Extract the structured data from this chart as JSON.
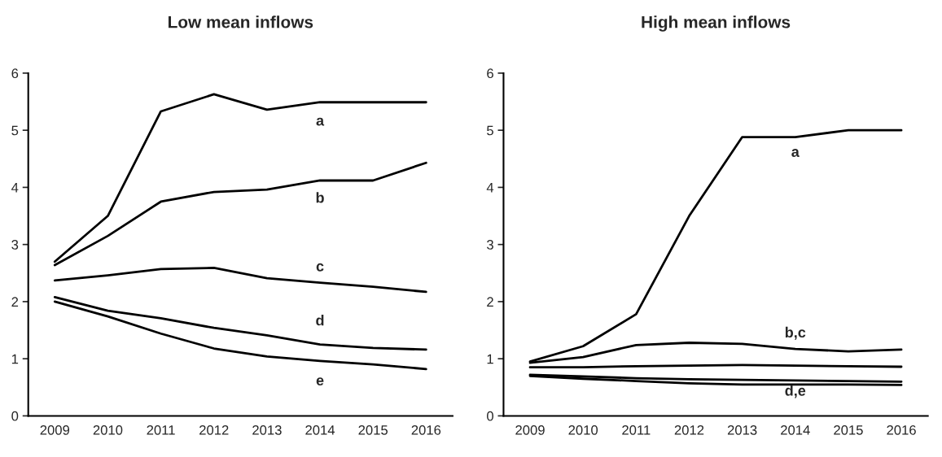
{
  "chart_data": [
    {
      "type": "line",
      "title": "Low mean inflows",
      "categories": [
        "2009",
        "2010",
        "2011",
        "2012",
        "2013",
        "2014",
        "2015",
        "2016"
      ],
      "ylim": [
        0,
        6
      ],
      "yticks": [
        0,
        1,
        2,
        3,
        4,
        5,
        6
      ],
      "grid": false,
      "legend": false,
      "marker": "none",
      "line_style": "solid",
      "series": [
        {
          "color": "#000000",
          "values": [
            2.7,
            3.5,
            5.33,
            5.63,
            5.36,
            5.49,
            5.49,
            5.49
          ]
        },
        {
          "color": "#000000",
          "values": [
            2.64,
            3.15,
            3.75,
            3.92,
            3.96,
            4.12,
            4.12,
            4.43
          ]
        },
        {
          "color": "#000000",
          "values": [
            2.37,
            2.46,
            2.57,
            2.59,
            2.41,
            2.33,
            2.26,
            2.17
          ]
        },
        {
          "color": "#000000",
          "values": [
            2.08,
            1.84,
            1.71,
            1.54,
            1.41,
            1.25,
            1.19,
            1.16
          ]
        },
        {
          "color": "#000000",
          "values": [
            2.0,
            1.74,
            1.44,
            1.18,
            1.04,
            0.96,
            0.9,
            0.82
          ]
        }
      ],
      "annotations": [
        "a",
        "b",
        "c",
        "d",
        "e"
      ]
    },
    {
      "type": "line",
      "title": "High mean inflows",
      "categories": [
        "2009",
        "2010",
        "2011",
        "2012",
        "2013",
        "2014",
        "2015",
        "2016"
      ],
      "ylim": [
        0,
        6
      ],
      "yticks": [
        0,
        1,
        2,
        3,
        4,
        5,
        6
      ],
      "grid": false,
      "legend": false,
      "marker": "none",
      "line_style": "solid",
      "series": [
        {
          "color": "#000000",
          "values": [
            0.95,
            1.22,
            1.78,
            3.5,
            4.88,
            4.88,
            5.0,
            5.0
          ]
        },
        {
          "color": "#000000",
          "values": [
            0.93,
            1.03,
            1.24,
            1.28,
            1.26,
            1.17,
            1.13,
            1.16
          ]
        },
        {
          "color": "#000000",
          "values": [
            0.85,
            0.85,
            0.87,
            0.88,
            0.89,
            0.88,
            0.87,
            0.86
          ]
        },
        {
          "color": "#000000",
          "values": [
            0.72,
            0.69,
            0.66,
            0.64,
            0.63,
            0.62,
            0.61,
            0.6
          ]
        },
        {
          "color": "#000000",
          "values": [
            0.7,
            0.65,
            0.61,
            0.57,
            0.55,
            0.55,
            0.55,
            0.54
          ]
        }
      ],
      "annotations": [
        "a",
        "b,c",
        "d,e"
      ]
    }
  ]
}
